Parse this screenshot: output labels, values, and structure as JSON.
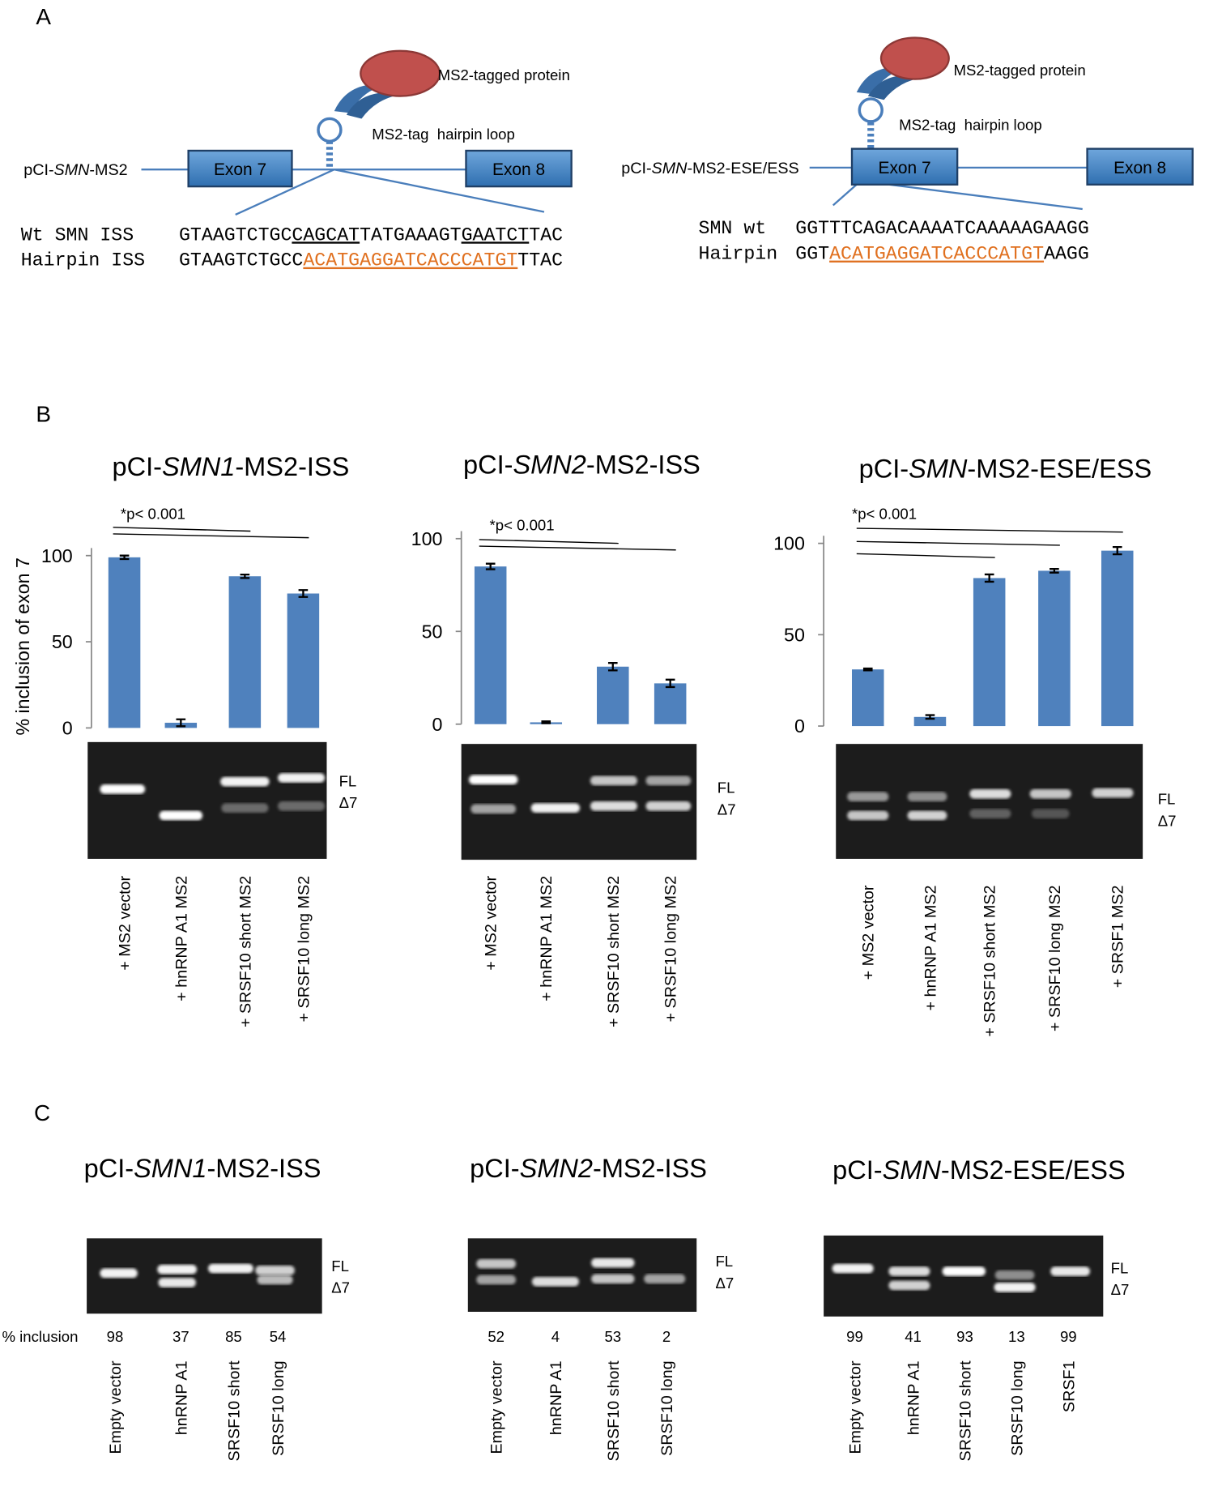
{
  "panel_a": {
    "label": "A",
    "left": {
      "construct": [
        {
          "text": "pCI-"
        },
        {
          "text": "SMN",
          "italic": true
        },
        {
          "text": "-MS2"
        }
      ],
      "exons": [
        "Exon 7",
        "Exon 8"
      ],
      "protein": "MS2-tagged protein",
      "hairpin": "MS2-tag  hairpin loop",
      "rows": [
        {
          "name": "Wt SMN ISS",
          "seq": [
            {
              "text": "GTAAGTCTGC"
            },
            {
              "text": "CAGCAT",
              "underline": true
            },
            {
              "text": "TATGAAAGT"
            },
            {
              "text": "GAATCT",
              "underline": true
            },
            {
              "text": "TAC"
            }
          ]
        },
        {
          "name": "Hairpin ISS",
          "seq": [
            {
              "text": "GTAAGTCTGCC"
            },
            {
              "text": "ACATGAGGATCACCCATGT",
              "underline": true,
              "color": "#e0701f"
            },
            {
              "text": "TTAC"
            }
          ]
        }
      ]
    },
    "right": {
      "construct": [
        {
          "text": "pCI-"
        },
        {
          "text": "SMN",
          "italic": true
        },
        {
          "text": "-MS2-ESE/ESS"
        }
      ],
      "exons": [
        "Exon 7",
        "Exon 8"
      ],
      "protein": "MS2-tagged protein",
      "hairpin": "MS2-tag  hairpin loop",
      "rows": [
        {
          "name": "SMN wt",
          "seq": [
            {
              "text": "GGTTTCAGACAAAATCAAAAAGAAGG"
            }
          ]
        },
        {
          "name": "Hairpin",
          "seq": [
            {
              "text": "GGT"
            },
            {
              "text": "ACATGAGGATCACCCATGT",
              "underline": true,
              "color": "#e0701f"
            },
            {
              "text": "AAGG"
            }
          ]
        }
      ]
    }
  },
  "panel_b": {
    "label": "B"
  },
  "chart_data": [
    {
      "type": "bar",
      "title": [
        {
          "text": "pCI-"
        },
        {
          "text": "SMN1",
          "italic": true
        },
        {
          "text": "-MS2-ISS"
        }
      ],
      "ylabel": "% inclusion of exon 7",
      "annotation": "*p< 0.001",
      "categories": [
        "+ MS2 vector",
        "+ hnRNP A1 MS2",
        "+ SRSF10 short MS2",
        "+ SRSF10 long MS2"
      ],
      "values": [
        99,
        3,
        88,
        78
      ],
      "errors": [
        1,
        2,
        1,
        2
      ],
      "color": "#4f81bd",
      "ylim": [
        0,
        100
      ],
      "yticks": [
        0,
        50,
        100
      ],
      "gel_labels": [
        "FL",
        "Δ7"
      ]
    },
    {
      "type": "bar",
      "title": [
        {
          "text": "pCI-"
        },
        {
          "text": "SMN2",
          "italic": true
        },
        {
          "text": "-MS2-ISS"
        }
      ],
      "annotation": "*p< 0.001",
      "categories": [
        "+ MS2 vector",
        "+ hnRNP A1 MS2",
        "+ SRSF10 short MS2",
        "+ SRSF10 long MS2"
      ],
      "values": [
        85,
        1,
        31,
        22
      ],
      "errors": [
        1.5,
        0.5,
        2,
        2
      ],
      "color": "#4f81bd",
      "ylim": [
        0,
        100
      ],
      "yticks": [
        0,
        50,
        100
      ],
      "gel_labels": [
        "FL",
        "Δ7"
      ]
    },
    {
      "type": "bar",
      "title": [
        {
          "text": "pCI-"
        },
        {
          "text": "SMN",
          "italic": true
        },
        {
          "text": "-MS2-ESE/ESS"
        }
      ],
      "annotation": "*p< 0.001",
      "categories": [
        "+ MS2 vector",
        "+ hnRNP A1 MS2",
        "+ SRSF10 short MS2",
        "+ SRSF10 long MS2",
        "+ SRSF1 MS2"
      ],
      "values": [
        31,
        5,
        81,
        85,
        96
      ],
      "errors": [
        0.5,
        1,
        2,
        1,
        2
      ],
      "color": "#4f81bd",
      "ylim": [
        0,
        100
      ],
      "yticks": [
        0,
        50,
        100
      ],
      "gel_labels": [
        "FL",
        "Δ7"
      ]
    }
  ],
  "panel_c": {
    "label": "C",
    "inclusion_label": "% inclusion",
    "gels": [
      {
        "title": [
          {
            "text": "pCI-"
          },
          {
            "text": "SMN1",
            "italic": true
          },
          {
            "text": "-MS2-ISS"
          }
        ],
        "lanes": [
          "Empty vector",
          "hnRNP A1",
          "SRSF10 short",
          "SRSF10 long"
        ],
        "inclusion": [
          98,
          37,
          85,
          54
        ],
        "gel_labels": [
          "FL",
          "Δ7"
        ]
      },
      {
        "title": [
          {
            "text": "pCI-"
          },
          {
            "text": "SMN2",
            "italic": true
          },
          {
            "text": "-MS2-ISS"
          }
        ],
        "lanes": [
          "Empty vector",
          "hnRNP A1",
          "SRSF10 short",
          "SRSF10 long"
        ],
        "inclusion": [
          52,
          4,
          53,
          2
        ],
        "gel_labels": [
          "FL",
          "Δ7"
        ]
      },
      {
        "title": [
          {
            "text": "pCI-"
          },
          {
            "text": "SMN",
            "italic": true
          },
          {
            "text": "-MS2-ESE/ESS"
          }
        ],
        "lanes": [
          "Empty vector",
          "hnRNP A1",
          "SRSF10 short",
          "SRSF10 long",
          "SRSF1"
        ],
        "inclusion": [
          99,
          41,
          93,
          13,
          99
        ],
        "gel_labels": [
          "FL",
          "Δ7"
        ]
      }
    ]
  }
}
